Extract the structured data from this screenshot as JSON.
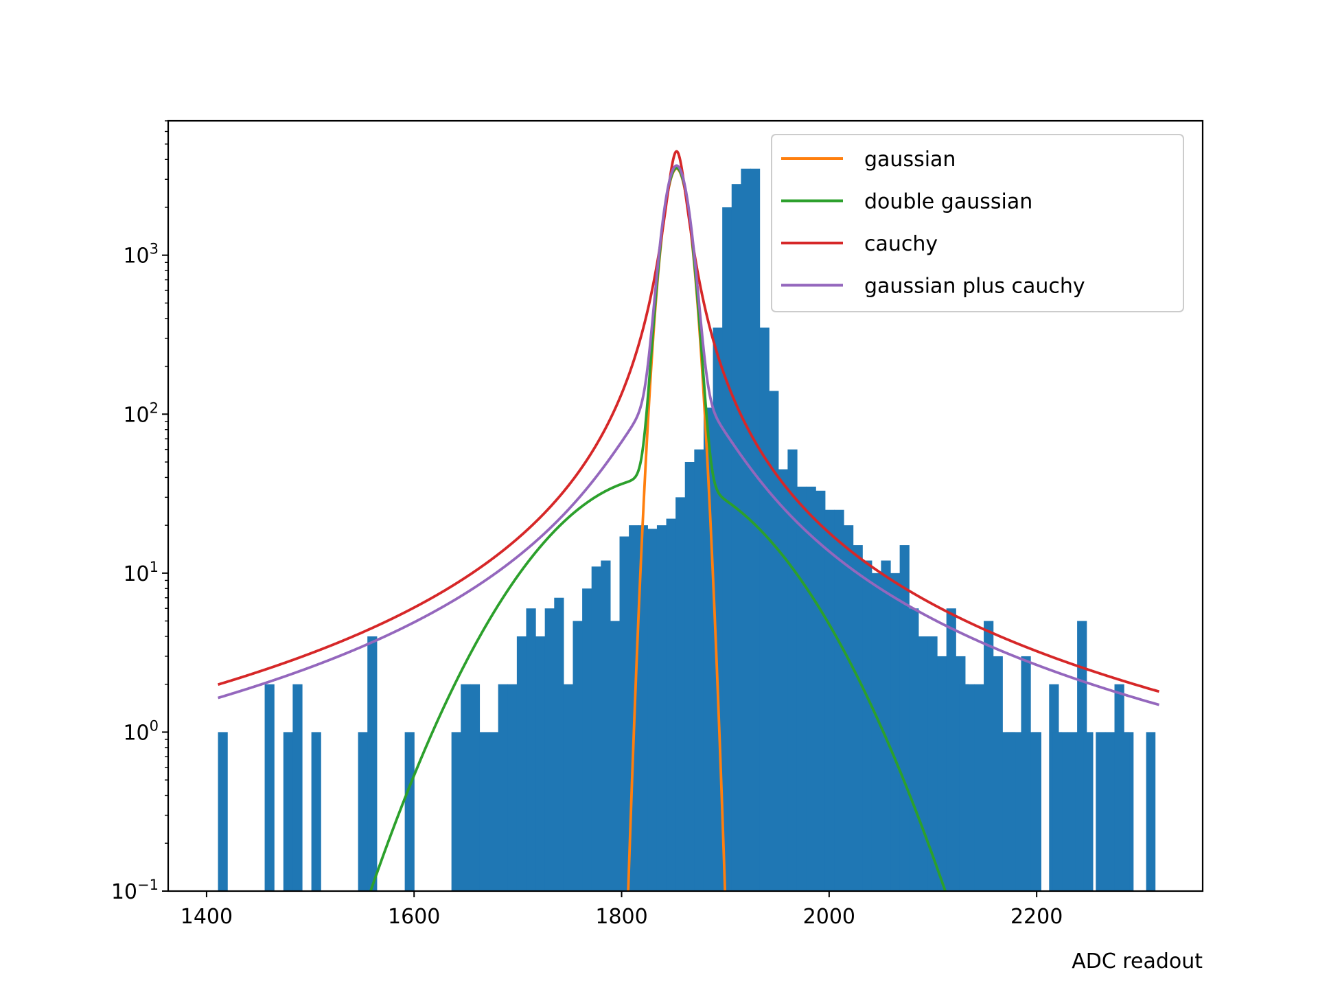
{
  "chart_data": {
    "type": "bar",
    "title": "",
    "xlabel": "ADC readout",
    "ylabel": "",
    "xlim": [
      1363,
      2360
    ],
    "ylim": [
      0.1,
      7000
    ],
    "yscale": "log",
    "grid": false,
    "legend_position": "upper right",
    "x_ticks": [
      1400,
      1600,
      1800,
      2000,
      2200
    ],
    "y_ticks": [
      {
        "value": 0.1,
        "base": "10",
        "exp": "−1"
      },
      {
        "value": 1,
        "base": "10",
        "exp": "0"
      },
      {
        "value": 10,
        "base": "10",
        "exp": "1"
      },
      {
        "value": 100,
        "base": "10",
        "exp": "2"
      },
      {
        "value": 1000,
        "base": "10",
        "exp": "3"
      }
    ],
    "histogram": {
      "color": "#1f77b4",
      "bin_start": 1411,
      "bin_width": 9,
      "counts": [
        1,
        0,
        0,
        0,
        0,
        2,
        0,
        1,
        2,
        0,
        1,
        0,
        0,
        0,
        0,
        1,
        4,
        0,
        0,
        0,
        1,
        0,
        0,
        0,
        0,
        1,
        2,
        2,
        1,
        1,
        2,
        2,
        4,
        6,
        4,
        6,
        7,
        2,
        5,
        8,
        11,
        12,
        5,
        17,
        20,
        20,
        19,
        20,
        22,
        30,
        50,
        60,
        110,
        350,
        2000,
        2800,
        3500,
        3500,
        350,
        140,
        45,
        60,
        35,
        35,
        33,
        25,
        25,
        20,
        15,
        12,
        10,
        12,
        10,
        15,
        6,
        4,
        4,
        3,
        6,
        3,
        2,
        2,
        5,
        3,
        1,
        1,
        3,
        1,
        0,
        2,
        1,
        1,
        5,
        0,
        1,
        1,
        2,
        1,
        0,
        0,
        0,
        0,
        0,
        0,
        0,
        0,
        0,
        0,
        0,
        0,
        0,
        0,
        0,
        0,
        0,
        0,
        0,
        0,
        0,
        0,
        0,
        0,
        0,
        0,
        0,
        0,
        0,
        0,
        0,
        0,
        0,
        0,
        0,
        0,
        0,
        0,
        0,
        0,
        0,
        0,
        0,
        0,
        0,
        0,
        0,
        0,
        0,
        0,
        0,
        0,
        0,
        0,
        0,
        0,
        0,
        0,
        0,
        0,
        0,
        0,
        0,
        0,
        0,
        0,
        0,
        0,
        0,
        0,
        0,
        0,
        0,
        0,
        0,
        0,
        0
      ]
    },
    "extra_bins": [
      {
        "x": 2130,
        "count": 2
      },
      {
        "x": 2175,
        "count": 1
      },
      {
        "x": 2200,
        "count": 1
      },
      {
        "x": 2220,
        "count": 1
      },
      {
        "x": 2242,
        "count": 1
      },
      {
        "x": 2250,
        "count": 1
      },
      {
        "x": 2285,
        "count": 1
      },
      {
        "x": 2310,
        "count": 1
      }
    ],
    "series": [
      {
        "name": "gaussian",
        "color": "#ff7f0e",
        "model": "gaussian",
        "params": {
          "amp": 3500,
          "mu": 1853,
          "sigma": 10.2
        }
      },
      {
        "name": "double gaussian",
        "color": "#2ca02c",
        "model": "double_gaussian",
        "params": {
          "amp1": 3500,
          "mu1": 1853,
          "sigma1": 10.2,
          "amp2": 40,
          "mu2": 1835,
          "sigma2": 80
        }
      },
      {
        "name": "cauchy",
        "color": "#d62728",
        "model": "cauchy",
        "params": {
          "amp": 4500,
          "x0": 1853,
          "gamma": 9.3
        }
      },
      {
        "name": "gaussian plus cauchy",
        "color": "#9467bd",
        "model": "gaussian_plus_cauchy",
        "params": {
          "g_amp": 3500,
          "mu": 1853,
          "sigma": 10.2,
          "c_amp": 160,
          "x0": 1853,
          "gamma": 45
        }
      }
    ],
    "curve_xrange": [
      1411,
      2318
    ]
  }
}
